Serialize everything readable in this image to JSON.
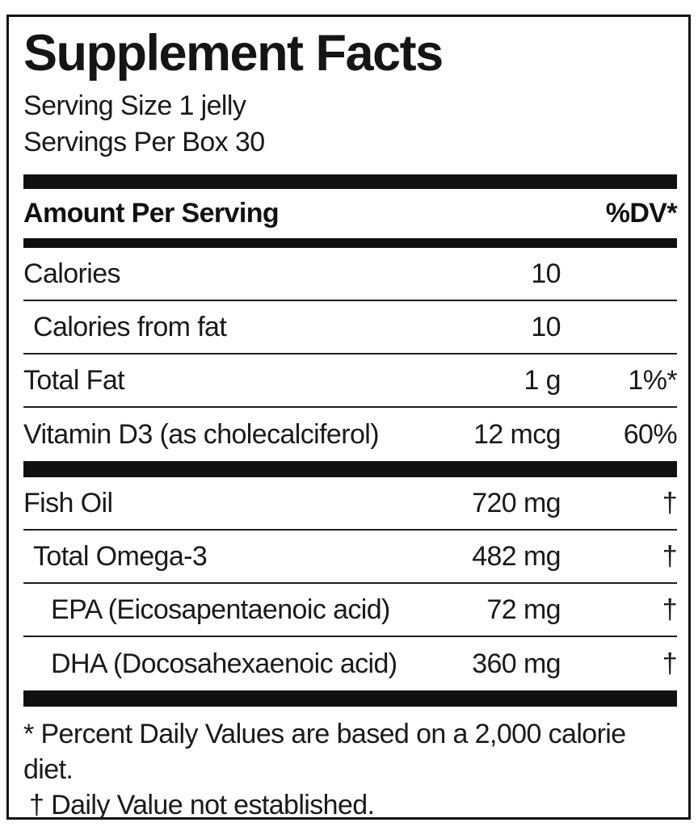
{
  "label": {
    "title": "Supplement Facts",
    "serving_size": "Serving Size 1 jelly",
    "servings_per_box": "Servings Per Box 30",
    "columns": {
      "amount_header": "Amount Per Serving",
      "dv_header": "%DV*"
    },
    "rows": [
      {
        "name": "Calories",
        "amount": "10",
        "dv": ""
      },
      {
        "name": "Calories from fat",
        "amount": "10",
        "dv": ""
      },
      {
        "name": "Total Fat",
        "amount": "1 g",
        "dv": "1%*"
      },
      {
        "name": "Vitamin D3 (as cholecalciferol)",
        "amount": "12 mcg",
        "dv": "60%"
      },
      {
        "name": "Fish Oil",
        "amount": "720 mg",
        "dv": "†"
      },
      {
        "name": "Total Omega-3",
        "amount": "482 mg",
        "dv": "†"
      },
      {
        "name": "EPA (Eicosapentaenoic acid)",
        "amount": "72 mg",
        "dv": "†"
      },
      {
        "name": "DHA (Docosahexaenoic acid)",
        "amount": "360 mg",
        "dv": "†"
      }
    ],
    "footnotes": {
      "percent_dv": "* Percent Daily Values are based on a 2,000 calorie diet.",
      "dagger": "† Daily Value not established."
    },
    "colors": {
      "ink": "#141414",
      "background": "#ffffff"
    }
  }
}
